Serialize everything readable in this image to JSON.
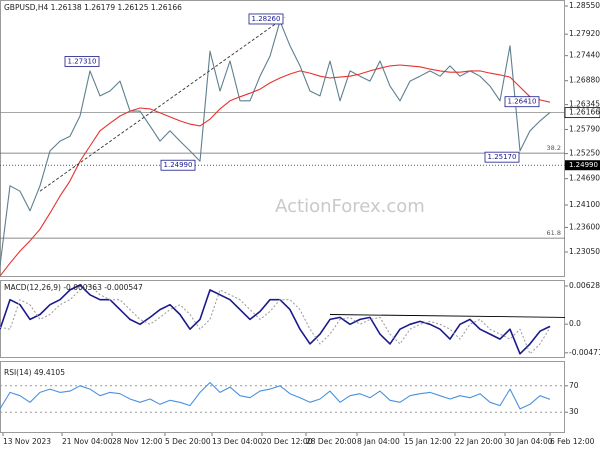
{
  "chart_data": [
    {
      "type": "line",
      "title": "GBPUSD,H4 1.26138 1.26179 1.26125 1.26166",
      "watermark": "ActionForex.com",
      "ylim": [
        1.22513,
        1.28662
      ],
      "yticks": [
        {
          "value": 1.2855,
          "label": "1.28550"
        },
        {
          "value": 1.2792,
          "label": "1.27920"
        },
        {
          "value": 1.2744,
          "label": "1.27440"
        },
        {
          "value": 1.2688,
          "label": "1.26880"
        },
        {
          "value": 1.26345,
          "label": "1.26345"
        },
        {
          "value": 1.2579,
          "label": "1.25790"
        },
        {
          "value": 1.2525,
          "label": "1.25250"
        },
        {
          "value": 1.2469,
          "label": "1.24690"
        },
        {
          "value": 1.241,
          "label": "1.24100"
        },
        {
          "value": 1.236,
          "label": "1.23600"
        },
        {
          "value": 1.2305,
          "label": "1.23050"
        }
      ],
      "series": [
        {
          "color": "#5f7f8f",
          "values": [
            1.2274,
            1.2453,
            1.2441,
            1.2397,
            1.2453,
            1.2531,
            1.2553,
            1.2564,
            1.2609,
            1.271,
            1.2654,
            1.2665,
            1.2687,
            1.262,
            1.262,
            1.2587,
            1.2553,
            1.2576,
            1.2553,
            1.2531,
            1.2508,
            1.2754,
            1.2665,
            1.2732,
            1.2643,
            1.2643,
            1.2698,
            1.2743,
            1.2821,
            1.2766,
            1.2721,
            1.2665,
            1.2654,
            1.2732,
            1.2643,
            1.271,
            1.2698,
            1.2687,
            1.2732,
            1.2676,
            1.2643,
            1.2687,
            1.2698,
            1.271,
            1.2698,
            1.2721,
            1.2698,
            1.271,
            1.2698,
            1.2676,
            1.2643,
            1.2766,
            1.2531,
            1.2576,
            1.2598,
            1.2617
          ]
        },
        {
          "color": "#e8312e",
          "values": [
            1.2251,
            1.228,
            1.2307,
            1.233,
            1.2356,
            1.2392,
            1.243,
            1.2464,
            1.2508,
            1.2542,
            1.2576,
            1.2593,
            1.2609,
            1.262,
            1.2627,
            1.2625,
            1.2616,
            1.2607,
            1.2598,
            1.2591,
            1.2587,
            1.2602,
            1.2625,
            1.2643,
            1.2652,
            1.266,
            1.2669,
            1.2683,
            1.2694,
            1.2703,
            1.271,
            1.2705,
            1.2698,
            1.2694,
            1.2696,
            1.2698,
            1.2703,
            1.271,
            1.2716,
            1.2721,
            1.2723,
            1.2721,
            1.2719,
            1.2714,
            1.271,
            1.2707,
            1.2707,
            1.271,
            1.271,
            1.2705,
            1.2701,
            1.2696,
            1.2674,
            1.2652,
            1.2645,
            1.264
          ]
        }
      ],
      "trendline": {
        "x": [
          40,
          285
        ],
        "values": [
          1.2441,
          1.283
        ]
      },
      "annotations": [
        {
          "text": "1.28260",
          "value": 1.2826,
          "x": 266
        },
        {
          "text": "1.27310",
          "value": 1.2731,
          "x": 82
        },
        {
          "text": "1.24990",
          "value": 1.2499,
          "x": 178
        },
        {
          "text": "1.25170",
          "value": 1.2517,
          "x": 502
        },
        {
          "text": "1.26410",
          "value": 1.2641,
          "x": 522
        }
      ],
      "levels": [
        {
          "label": "38.2",
          "value": 1.2526
        },
        {
          "label": "61.8",
          "value": 1.2336
        }
      ],
      "last": {
        "value": 1.26166,
        "label": "1.26166"
      },
      "support": {
        "value": 1.2499,
        "label": "1.24990"
      }
    },
    {
      "type": "line",
      "title": "MACD(12,26,9) -0.000363 -0.000547",
      "ylim": [
        -0.0054,
        0.0071
      ],
      "yticks": [
        0.006281,
        {
          "value": 0,
          "label": "0.0"
        },
        -0.004711
      ],
      "series": [
        {
          "color": "#1a1a8c",
          "values": [
            -0.00083,
            0.00402,
            0.00321,
            0.00079,
            0.00159,
            0.00321,
            0.00402,
            0.00563,
            0.00644,
            0.00483,
            0.00402,
            0.00402,
            0.0024,
            0.00079,
            -2e-05,
            0.00111,
            0.0024,
            0.00321,
            0.00159,
            -0.00083,
            0.00079,
            0.00563,
            0.00483,
            0.00402,
            0.0024,
            0.00079,
            0.00208,
            0.00402,
            0.00402,
            0.0024,
            -0.00083,
            -0.00325,
            -0.00164,
            0.00079,
            0.00111,
            -2e-05,
            0.00079,
            0.00111,
            -0.00164,
            -0.00325,
            -0.00083,
            -2e-05,
            0.00046,
            -2e-05,
            -0.00083,
            -0.00245,
            -2e-05,
            0.00079,
            -0.00083,
            -0.00164,
            -0.00245,
            -0.00083,
            -0.00487,
            -0.00325,
            -0.00115,
            -0.00036
          ]
        },
        {
          "color": "#a0a0a0",
          "style": "dotted",
          "values": [
            -0.0005,
            -0.00083,
            0.00402,
            0.00321,
            0.00079,
            0.00159,
            0.00321,
            0.00402,
            0.00563,
            0.00644,
            0.00483,
            0.00402,
            0.00402,
            0.0024,
            0.00079,
            -2e-05,
            0.00111,
            0.0024,
            0.00321,
            0.00159,
            -0.00083,
            0.00079,
            0.00563,
            0.00483,
            0.00402,
            0.0024,
            0.00079,
            0.00208,
            0.00402,
            0.00402,
            0.0024,
            -0.00083,
            -0.00325,
            -0.00164,
            0.00079,
            0.00111,
            -2e-05,
            0.00079,
            0.00111,
            -0.00164,
            -0.00325,
            -0.00083,
            -2e-05,
            0.00046,
            -2e-05,
            -0.00083,
            -0.00245,
            -2e-05,
            0.00079,
            -0.00083,
            -0.00164,
            -0.00245,
            -0.00083,
            -0.00487,
            -0.00325,
            -0.00055
          ]
        }
      ],
      "trendline": {
        "x": [
          330,
          565
        ],
        "values": [
          0.00159,
          0.00111
        ]
      }
    },
    {
      "type": "line",
      "title": "RSI(14) 49.4105",
      "ylim": [
        0,
        100
      ],
      "yticks": [
        70,
        30
      ],
      "grid": true,
      "series": [
        {
          "color": "#4a90e2",
          "values": [
            35,
            60,
            55,
            45,
            60,
            65,
            60,
            62,
            70,
            65,
            55,
            60,
            58,
            50,
            45,
            50,
            42,
            48,
            45,
            40,
            60,
            75,
            60,
            68,
            55,
            52,
            62,
            65,
            70,
            58,
            52,
            45,
            50,
            62,
            45,
            55,
            58,
            52,
            62,
            48,
            45,
            55,
            58,
            60,
            55,
            50,
            55,
            52,
            58,
            45,
            40,
            65,
            35,
            42,
            55,
            49.41
          ]
        }
      ],
      "x": [
        0,
        10,
        20,
        30,
        40,
        50,
        60,
        70,
        80,
        90,
        100,
        110,
        120,
        130,
        140,
        150,
        160,
        170,
        180,
        190,
        200,
        210,
        220,
        230,
        240,
        250,
        260,
        270,
        280,
        290,
        300,
        310,
        320,
        330,
        340,
        350,
        360,
        370,
        380,
        390,
        400,
        410,
        420,
        430,
        440,
        450,
        460,
        470,
        480,
        490,
        500,
        510,
        520,
        530,
        540,
        550
      ],
      "xlim": [
        0,
        565
      ],
      "xticks": [
        {
          "value": 3,
          "label": "13 Nov 2023"
        },
        {
          "value": 62,
          "label": "21 Nov 04:00"
        },
        {
          "value": 112,
          "label": "28 Nov 12:00"
        },
        {
          "value": 165,
          "label": "5 Dec 20:00"
        },
        {
          "value": 212,
          "label": "13 Dec 04:00"
        },
        {
          "value": 262,
          "label": "20 Dec 12:00"
        },
        {
          "value": 306,
          "label": "28 Dec 20:00"
        },
        {
          "value": 357,
          "label": "8 Jan 04:00"
        },
        {
          "value": 404,
          "label": "15 Jan 12:00"
        },
        {
          "value": 455,
          "label": "22 Jan 20:00"
        },
        {
          "value": 505,
          "label": "30 Jan 04:00"
        },
        {
          "value": 550,
          "label": "6 Feb 12:00"
        }
      ]
    }
  ]
}
